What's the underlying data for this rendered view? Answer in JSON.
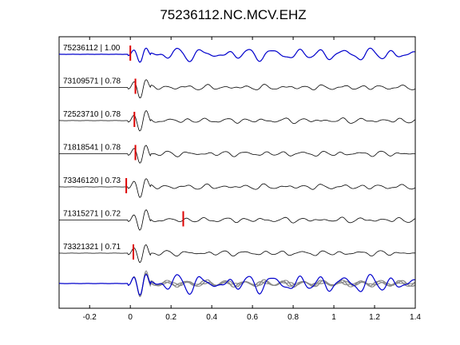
{
  "chart_data": {
    "type": "line",
    "title": "75236112.NC.MCV.EHZ",
    "xlabel": "",
    "ylabel": "",
    "xlim": [
      -0.35,
      1.4
    ],
    "x_ticks": [
      -0.2,
      0,
      0.2,
      0.4,
      0.6,
      0.8,
      1,
      1.2,
      1.4
    ],
    "x_tick_labels": [
      "-0.2",
      "0",
      "0.2",
      "0.4",
      "0.6",
      "0.8",
      "1",
      "1.2",
      "1.4"
    ],
    "grid": false,
    "colors": {
      "reference": "#0000cc",
      "trace": "#000000",
      "pick": "#dd0000",
      "overlay": "#888888"
    },
    "traces": [
      {
        "event_id": "75236112",
        "correlation": "1.00",
        "label": "75236112 | 1.00",
        "pick_time": 0.0,
        "reference": true
      },
      {
        "event_id": "73109571",
        "correlation": "0.78",
        "label": "73109571 | 0.78",
        "pick_time": 0.025
      },
      {
        "event_id": "72523710",
        "correlation": "0.78",
        "label": "72523710 | 0.78",
        "pick_time": 0.02
      },
      {
        "event_id": "71818541",
        "correlation": "0.78",
        "label": "71818541 | 0.78",
        "pick_time": 0.025
      },
      {
        "event_id": "73346120",
        "correlation": "0.73",
        "label": "73346120 | 0.73",
        "pick_time": -0.02
      },
      {
        "event_id": "71315271",
        "correlation": "0.72",
        "label": "71315271 | 0.72",
        "pick_time": 0.26
      },
      {
        "event_id": "73321321",
        "correlation": "0.71",
        "label": "73321321 | 0.71",
        "pick_time": 0.015
      }
    ],
    "stack": {
      "description": "overlay of all aligned traces",
      "reference_highlighted": true
    }
  }
}
